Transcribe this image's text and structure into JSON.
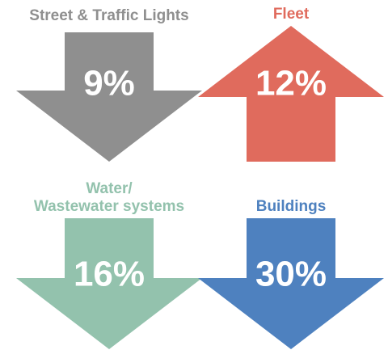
{
  "items": [
    {
      "label_lines": [
        "Street & Traffic Lights"
      ],
      "value": "9%",
      "direction": "down",
      "color": "#8f8f8f"
    },
    {
      "label_lines": [
        "Fleet"
      ],
      "value": "12%",
      "direction": "up",
      "color": "#e06b5d"
    },
    {
      "label_lines": [
        "Water/",
        "Wastewater systems"
      ],
      "value": "16%",
      "direction": "down",
      "color": "#93c2ad"
    },
    {
      "label_lines": [
        "Buildings"
      ],
      "value": "30%",
      "direction": "down",
      "color": "#4e81bf"
    }
  ]
}
